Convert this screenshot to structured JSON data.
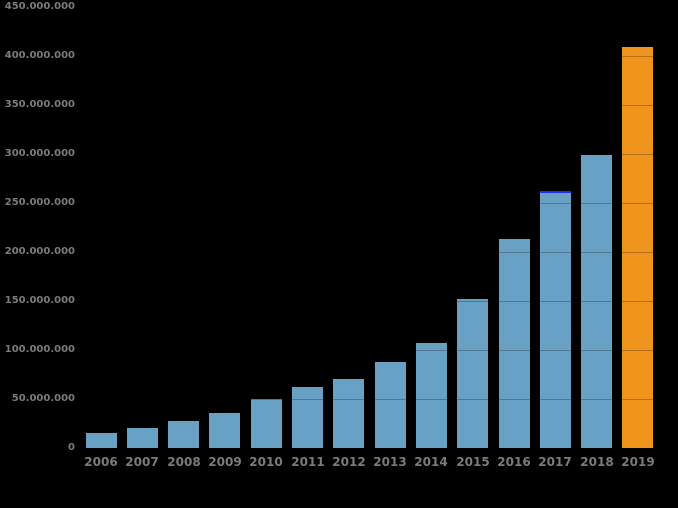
{
  "chart_data": {
    "type": "bar",
    "title": "",
    "xlabel": "",
    "ylabel": "",
    "legend": "none",
    "grid": "horizontal",
    "categories": [
      "2006",
      "2007",
      "2008",
      "2009",
      "2010",
      "2011",
      "2012",
      "2013",
      "2014",
      "2015",
      "2016",
      "2017",
      "2018",
      "2019"
    ],
    "values": [
      15000000,
      20000000,
      28000000,
      36000000,
      50000000,
      62000000,
      70000000,
      88000000,
      107000000,
      152000000,
      213000000,
      262000000,
      299000000,
      409000000
    ],
    "ylim": [
      0,
      450000000
    ],
    "ytick_step": 50000000,
    "ytick_labels": [
      "0",
      "50.000.000",
      "100.000.000",
      "150.000.000",
      "200.000.000",
      "250.000.000",
      "300.000.000",
      "350.000.000",
      "400.000.000",
      "450.000.000"
    ],
    "highlight_category": "2019",
    "cap_category": "2017",
    "colors": {
      "background": "#000000",
      "bar": "#68a1c4",
      "highlight_bar": "#f0941e",
      "cap_line": "#2130e8",
      "axis_label": "#7b7b7b"
    }
  }
}
